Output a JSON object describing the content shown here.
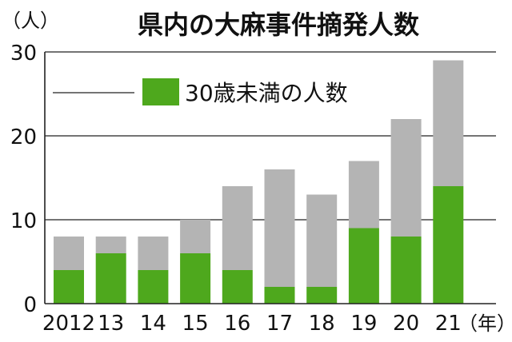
{
  "chart_data": {
    "type": "bar",
    "stacked": true,
    "title": "県内の大麻事件摘発人数",
    "y_unit_label": "（人）",
    "x_unit_label": "（年）",
    "categories": [
      "2012",
      "13",
      "14",
      "15",
      "16",
      "17",
      "18",
      "19",
      "20",
      "21"
    ],
    "totals": [
      8,
      8,
      8,
      10,
      14,
      16,
      13,
      17,
      22,
      29
    ],
    "series": [
      {
        "name": "30歳未満の人数",
        "values": [
          4,
          6,
          4,
          6,
          4,
          2,
          2,
          9,
          8,
          14
        ],
        "color": "#4ea81d"
      },
      {
        "values": [
          4,
          2,
          4,
          4,
          10,
          14,
          11,
          8,
          14,
          15
        ],
        "color": "#b4b4b4"
      }
    ],
    "ylim": [
      0,
      30
    ],
    "yticks": [
      "0",
      "10",
      "20",
      "30"
    ],
    "grid": true,
    "legend_position": "top-left"
  }
}
